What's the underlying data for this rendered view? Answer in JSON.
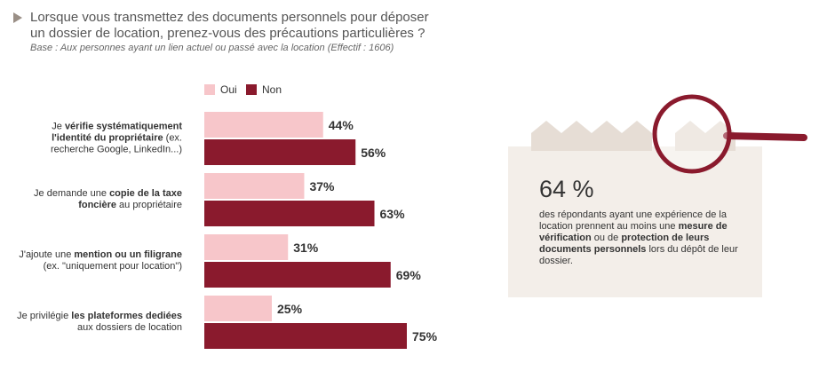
{
  "title": "Lorsque vous transmettez des documents personnels pour déposer un dossier de location, prenez-vous des précautions particulières ?",
  "subtitle": "Base : Aux personnes ayant un lien actuel ou passé avec la location (Effectif : 1606)",
  "chart_data": {
    "type": "hbar",
    "categories": [
      [
        "Je ",
        "vérifie systématiquement l'identité du propriétaire",
        " (ex. recherche Google, LinkedIn...)"
      ],
      [
        "Je demande une ",
        "copie de la taxe foncière",
        " au propriétaire"
      ],
      [
        "J'ajoute une ",
        "mention ou un filigrane",
        " (ex. \"uniquement pour location\")"
      ],
      [
        "Je privilégie ",
        "les plateformes dediées",
        " aux dossiers de location"
      ]
    ],
    "series": [
      {
        "name": "Oui",
        "color": "#f7c6ca",
        "values": [
          44,
          37,
          31,
          25
        ],
        "value_labels": [
          "44%",
          "37%",
          "31%",
          "25%"
        ]
      },
      {
        "name": "Non",
        "color": "#8a1a2d",
        "values": [
          56,
          63,
          69,
          75
        ],
        "value_labels": [
          "56%",
          "63%",
          "69%",
          "75%"
        ]
      }
    ],
    "xlim": [
      0,
      100
    ]
  },
  "callout": {
    "stat": "64 %",
    "text": [
      "des répondants ayant une expérience de la location prennent au moins une ",
      "mesure de vérification",
      " ou de ",
      "protection de leurs documents personnels",
      " lors du dépôt de leur dossier."
    ]
  }
}
